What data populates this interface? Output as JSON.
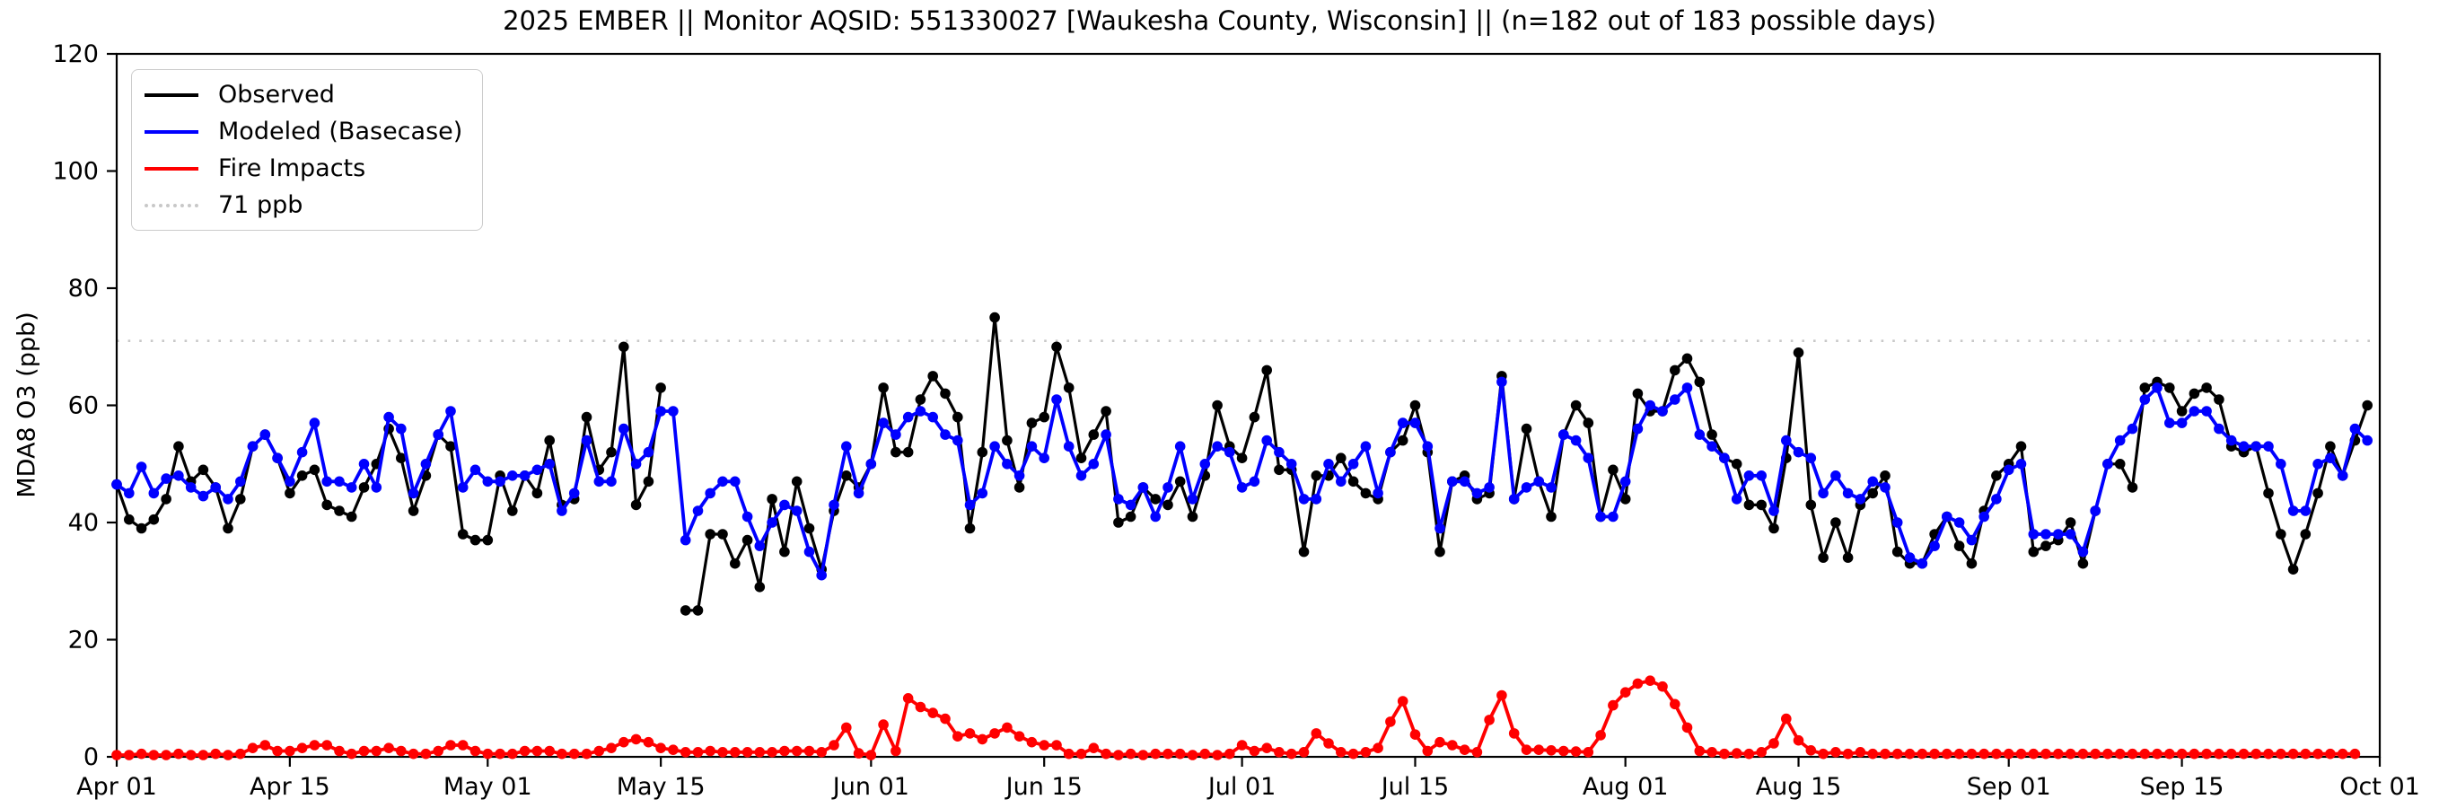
{
  "chart_data": {
    "type": "line",
    "title": "2025 EMBER || Monitor AQSID: 551330027 [Waukesha County, Wisconsin] || (n=182 out of 183 possible days)",
    "ylabel": "MDA8 O3 (ppb)",
    "xlabel": "",
    "ylim": [
      0,
      120
    ],
    "x_range_days": 183,
    "start_date": "Apr 01",
    "end_date": "Oct 01",
    "grid": false,
    "legend_position": "upper left",
    "y_ticks": [
      0,
      20,
      40,
      60,
      80,
      100,
      120
    ],
    "x_ticks": [
      {
        "label": "Apr 01",
        "day": 0
      },
      {
        "label": "Apr 15",
        "day": 14
      },
      {
        "label": "May 01",
        "day": 30
      },
      {
        "label": "May 15",
        "day": 44
      },
      {
        "label": "Jun 01",
        "day": 61
      },
      {
        "label": "Jun 15",
        "day": 75
      },
      {
        "label": "Jul 01",
        "day": 91
      },
      {
        "label": "Jul 15",
        "day": 105
      },
      {
        "label": "Aug 01",
        "day": 122
      },
      {
        "label": "Aug 15",
        "day": 136
      },
      {
        "label": "Sep 01",
        "day": 153
      },
      {
        "label": "Sep 15",
        "day": 167
      },
      {
        "label": "Oct 01",
        "day": 183
      }
    ],
    "reference_line": {
      "value": 71,
      "label": "71 ppb",
      "color": "#c8c8c8",
      "style": "dotted"
    },
    "series": [
      {
        "name": "Observed",
        "color": "#000000",
        "values": [
          46.5,
          40.5,
          39,
          40.5,
          44,
          53,
          47,
          49,
          46,
          39,
          44,
          53,
          55,
          51,
          45,
          48,
          49,
          43,
          42,
          41,
          46,
          50,
          56,
          51,
          42,
          48,
          55,
          53,
          38,
          37,
          37,
          48,
          42,
          48,
          45,
          54,
          43,
          44,
          58,
          49,
          52,
          70,
          43,
          47,
          63,
          null,
          25,
          25,
          38,
          38,
          33,
          37,
          29,
          44,
          35,
          47,
          39,
          32,
          42,
          48,
          46,
          50,
          63,
          52,
          52,
          61,
          65,
          62,
          58,
          39,
          52,
          75,
          54,
          46,
          57,
          58,
          70,
          63,
          51,
          55,
          59,
          40,
          41,
          46,
          44,
          43,
          47,
          41,
          48,
          60,
          53,
          51,
          58,
          66,
          49,
          49,
          35,
          48,
          48,
          51,
          47,
          45,
          44,
          52,
          54,
          60,
          52,
          35,
          47,
          48,
          44,
          45,
          65,
          44,
          56,
          47,
          41,
          55,
          60,
          57,
          41,
          49,
          44,
          62,
          59,
          59,
          66,
          68,
          64,
          55,
          51,
          50,
          43,
          43,
          39,
          51,
          69,
          43,
          34,
          40,
          34,
          43,
          45,
          48,
          35,
          33,
          33,
          38,
          41,
          36,
          33,
          42,
          48,
          50,
          53,
          35,
          36,
          37,
          40,
          33,
          42,
          50,
          50,
          46,
          63,
          64,
          63,
          59,
          62,
          63,
          61,
          53,
          52,
          53,
          45,
          38,
          32,
          38,
          45,
          53,
          48,
          54,
          60
        ]
      },
      {
        "name": "Modeled (Basecase)",
        "color": "#0000ff",
        "values": [
          46.5,
          45,
          49.5,
          45,
          47.5,
          48,
          46,
          44.5,
          46,
          44,
          47,
          53,
          55,
          51,
          47,
          52,
          57,
          47,
          47,
          46,
          50,
          46,
          58,
          56,
          45,
          50,
          55,
          59,
          46,
          49,
          47,
          47,
          48,
          48,
          49,
          50,
          42,
          45,
          54,
          47,
          47,
          56,
          50,
          52,
          59,
          59,
          37,
          42,
          45,
          47,
          47,
          41,
          36,
          40,
          43,
          42,
          35,
          31,
          43,
          53,
          45,
          50,
          57,
          55,
          58,
          59,
          58,
          55,
          54,
          43,
          45,
          53,
          50,
          48,
          53,
          51,
          61,
          53,
          48,
          50,
          55,
          44,
          43,
          46,
          41,
          46,
          53,
          44,
          50,
          53,
          52,
          46,
          47,
          54,
          52,
          50,
          44,
          44,
          50,
          47,
          50,
          53,
          45,
          52,
          57,
          57,
          53,
          39,
          47,
          47,
          45,
          46,
          64,
          44,
          46,
          47,
          46,
          55,
          54,
          51,
          41,
          41,
          47,
          56,
          60,
          59,
          61,
          63,
          55,
          53,
          51,
          44,
          48,
          48,
          42,
          54,
          52,
          51,
          45,
          48,
          45,
          44,
          47,
          46,
          40,
          34,
          33,
          36,
          41,
          40,
          37,
          41,
          44,
          49,
          50,
          38,
          38,
          38,
          38,
          35,
          42,
          50,
          54,
          56,
          61,
          63,
          57,
          57,
          59,
          59,
          56,
          54,
          53,
          53,
          53,
          50,
          42,
          42,
          50,
          51,
          48,
          56,
          54
        ]
      },
      {
        "name": "Fire Impacts",
        "color": "#ff0000",
        "values": [
          0.3,
          0.3,
          0.5,
          0.3,
          0.3,
          0.5,
          0.3,
          0.3,
          0.5,
          0.3,
          0.5,
          1.5,
          2,
          1,
          1,
          1.5,
          2,
          2,
          1,
          0.5,
          1,
          1,
          1.5,
          1,
          0.5,
          0.5,
          1,
          2,
          2,
          1,
          0.5,
          0.5,
          0.5,
          1,
          1,
          1,
          0.5,
          0.5,
          0.5,
          1,
          1.5,
          2.5,
          3,
          2.5,
          1.5,
          1.2,
          0.8,
          0.8,
          1,
          0.8,
          0.8,
          0.8,
          0.8,
          0.8,
          1,
          1,
          1,
          0.8,
          2,
          5,
          0.6,
          0.3,
          5.5,
          1,
          10,
          8.5,
          7.5,
          6.5,
          3.5,
          4,
          3,
          4,
          5,
          3.5,
          2.5,
          2,
          2,
          0.5,
          0.5,
          1.5,
          0.5,
          0.3,
          0.5,
          0.3,
          0.5,
          0.5,
          0.5,
          0.3,
          0.5,
          0.3,
          0.5,
          2,
          1,
          1.5,
          0.8,
          0.5,
          0.8,
          4,
          2.3,
          0.8,
          0.5,
          0.8,
          1.5,
          6,
          9.5,
          3.8,
          1,
          2.5,
          2,
          1.2,
          0.8,
          6.3,
          10.5,
          4,
          1.2,
          1.2,
          1.1,
          1,
          0.9,
          0.8,
          3.7,
          8.8,
          11,
          12.5,
          13,
          12,
          9,
          5,
          1,
          0.8,
          0.5,
          0.6,
          0.5,
          0.8,
          2.3,
          6.5,
          2.8,
          1.1,
          0.5,
          0.8,
          0.5,
          0.8,
          0.5,
          0.5,
          0.5,
          0.5,
          0.5,
          0.5,
          0.5,
          0.5,
          0.5,
          0.5,
          0.5,
          0.5,
          0.5,
          0.5,
          0.5,
          0.5,
          0.5,
          0.5,
          0.5,
          0.5,
          0.5,
          0.5,
          0.5,
          0.5,
          0.5,
          0.5,
          0.5,
          0.5,
          0.5,
          0.5,
          0.5,
          0.5,
          0.5,
          0.5,
          0.5,
          0.5,
          0.5,
          0.5,
          0.5,
          0.5
        ]
      }
    ]
  },
  "legend": {
    "items": [
      {
        "label": "Observed",
        "color": "#000000",
        "style": "solid"
      },
      {
        "label": "Modeled (Basecase)",
        "color": "#0000ff",
        "style": "solid"
      },
      {
        "label": "Fire Impacts",
        "color": "#ff0000",
        "style": "solid"
      },
      {
        "label": "71 ppb",
        "color": "#c8c8c8",
        "style": "dotted"
      }
    ]
  }
}
